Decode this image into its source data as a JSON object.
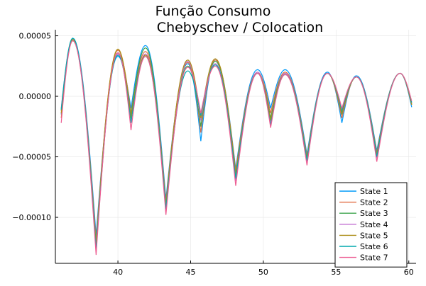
{
  "chart_data": {
    "type": "line",
    "title_lines": [
      "Função Consumo",
      "Chebyschev / Colocation"
    ],
    "xlabel": "",
    "ylabel": "",
    "xlim": [
      35.7,
      60.5
    ],
    "ylim": [
      -0.000138,
      5.5e-05
    ],
    "xticks": [
      40,
      45,
      50,
      55,
      60
    ],
    "xtick_labels": [
      "40",
      "45",
      "50",
      "55",
      "60"
    ],
    "yticks": [
      5e-05,
      0.0,
      -5e-05,
      -0.0001
    ],
    "ytick_labels": [
      "0.00005",
      "0.00000",
      "−0.00005",
      "−0.00010"
    ],
    "grid": true,
    "legend_position": "bottom-right",
    "series": [
      {
        "name": "State 1",
        "color": "#009AF9",
        "x": [
          36.1,
          36.9,
          38.5,
          40.0,
          40.9,
          41.9,
          43.3,
          44.8,
          45.7,
          46.7,
          48.1,
          49.6,
          50.5,
          51.5,
          53.0,
          54.4,
          55.4,
          56.4,
          57.8,
          59.4,
          60.2
        ],
        "y": [
          -1.5e-05,
          4.8e-05,
          -0.000115,
          3.3e-05,
          -1e-05,
          4.2e-05,
          -8.5e-05,
          2.7e-05,
          -3.7e-05,
          3e-05,
          -6e-05,
          2.2e-05,
          -1e-05,
          2.2e-05,
          -4.8e-05,
          2e-05,
          -2.2e-05,
          1.7e-05,
          -4.5e-05,
          1.9e-05,
          -9e-06
        ]
      },
      {
        "name": "State 2",
        "color": "#E26F46",
        "x": [
          36.1,
          36.9,
          38.5,
          40.0,
          40.9,
          41.9,
          43.3,
          44.8,
          45.7,
          46.7,
          48.1,
          49.6,
          50.5,
          51.5,
          53.0,
          54.4,
          55.4,
          56.4,
          57.8,
          59.4,
          60.2
        ],
        "y": [
          -1.8e-05,
          4.7e-05,
          -0.00012,
          3.8e-05,
          -1.4e-05,
          3.7e-05,
          -8.8e-05,
          2.8e-05,
          -3e-05,
          3e-05,
          -6.2e-05,
          2e-05,
          -1.4e-05,
          2e-05,
          -5e-05,
          1.9e-05,
          -1.8e-05,
          1.6e-05,
          -4.7e-05,
          1.9e-05,
          -7e-06
        ]
      },
      {
        "name": "State 3",
        "color": "#3EA44E",
        "x": [
          36.1,
          36.9,
          38.5,
          40.0,
          40.9,
          41.9,
          43.3,
          44.8,
          45.7,
          46.7,
          48.1,
          49.6,
          50.5,
          51.5,
          53.0,
          54.4,
          55.4,
          56.4,
          57.8,
          59.4,
          60.2
        ],
        "y": [
          -1.2e-05,
          4.6e-05,
          -0.000125,
          3.6e-05,
          -1.6e-05,
          4e-05,
          -9.2e-05,
          2.5e-05,
          -2.5e-05,
          2.9e-05,
          -6.6e-05,
          1.9e-05,
          -1.8e-05,
          1.9e-05,
          -5.2e-05,
          1.9e-05,
          -1.5e-05,
          1.6e-05,
          -4.9e-05,
          1.9e-05,
          -6e-06
        ]
      },
      {
        "name": "State 4",
        "color": "#C271D2",
        "x": [
          36.1,
          36.9,
          38.5,
          40.0,
          40.9,
          41.9,
          43.3,
          44.8,
          45.7,
          46.7,
          48.1,
          49.6,
          50.5,
          51.5,
          53.0,
          54.4,
          55.4,
          56.4,
          57.8,
          59.4,
          60.2
        ],
        "y": [
          -1e-05,
          4.7e-05,
          -0.000128,
          3.5e-05,
          -2e-05,
          3.5e-05,
          -9.5e-05,
          2.9e-05,
          -2e-05,
          2.7e-05,
          -7e-05,
          2e-05,
          -2.2e-05,
          1.9e-05,
          -5.4e-05,
          1.9e-05,
          -1.3e-05,
          1.6e-05,
          -5.1e-05,
          1.9e-05,
          -6e-06
        ]
      },
      {
        "name": "State 5",
        "color": "#AC8E18",
        "x": [
          36.1,
          36.9,
          38.5,
          40.0,
          40.9,
          41.9,
          43.3,
          44.8,
          45.7,
          46.7,
          48.1,
          49.6,
          50.5,
          51.5,
          53.0,
          54.4,
          55.4,
          56.4,
          57.8,
          59.4,
          60.2
        ],
        "y": [
          -1.4e-05,
          4.7e-05,
          -0.000123,
          3.9e-05,
          -1.8e-05,
          3.4e-05,
          -9e-05,
          3e-05,
          -1.8e-05,
          3.1e-05,
          -6.4e-05,
          1.9e-05,
          -2e-05,
          1.8e-05,
          -5.1e-05,
          1.9e-05,
          -1.4e-05,
          1.6e-05,
          -4.8e-05,
          1.9e-05,
          -7e-06
        ]
      },
      {
        "name": "State 6",
        "color": "#00A9AD",
        "x": [
          36.1,
          36.9,
          38.5,
          40.0,
          40.9,
          41.9,
          43.3,
          44.8,
          45.7,
          46.7,
          48.1,
          49.6,
          50.5,
          51.5,
          53.0,
          54.4,
          55.4,
          56.4,
          57.8,
          59.4,
          60.2
        ],
        "y": [
          -1.1e-05,
          4.8e-05,
          -0.000127,
          3.4e-05,
          -2.2e-05,
          3.3e-05,
          -9.3e-05,
          2.1e-05,
          -1.6e-05,
          2.6e-05,
          -6.8e-05,
          1.9e-05,
          -2.4e-05,
          1.8e-05,
          -5.3e-05,
          1.9e-05,
          -1.2e-05,
          1.6e-05,
          -5e-05,
          1.9e-05,
          -5e-06
        ]
      },
      {
        "name": "State 7",
        "color": "#ED5D92",
        "x": [
          36.1,
          36.9,
          38.5,
          40.0,
          40.9,
          41.9,
          43.3,
          44.8,
          45.7,
          46.7,
          48.1,
          49.6,
          50.5,
          51.5,
          53.0,
          54.4,
          55.4,
          56.4,
          57.8,
          59.4,
          60.2
        ],
        "y": [
          -2.2e-05,
          4.6e-05,
          -0.000131,
          3.6e-05,
          -2.8e-05,
          3.3e-05,
          -9.8e-05,
          2.4e-05,
          -1.4e-05,
          2.5e-05,
          -7.4e-05,
          1.9e-05,
          -2.6e-05,
          1.8e-05,
          -5.7e-05,
          1.9e-05,
          -1e-05,
          1.6e-05,
          -5.4e-05,
          1.9e-05,
          -4e-06
        ]
      }
    ]
  }
}
